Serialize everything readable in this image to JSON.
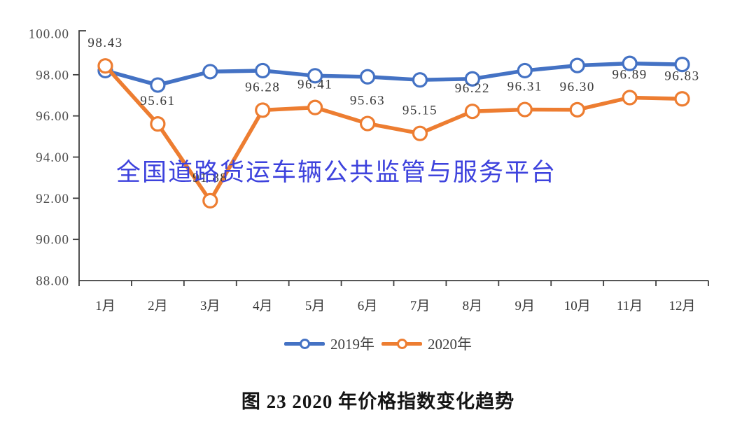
{
  "watermark": {
    "text": "全国道路货运车辆公共监管与服务平台",
    "color": "#3d42dd"
  },
  "caption": {
    "text": "图 23  2020 年价格指数变化趋势"
  },
  "colors": {
    "axis": "#3f3f3f",
    "tick_text": "#4d4d4d",
    "data_label_text": "#383838",
    "series_2019": "#4472c4",
    "series_2020": "#ed7d31"
  },
  "chart_data": {
    "type": "line",
    "title": "图 23 2020 年价格指数变化趋势",
    "categories": [
      "1月",
      "2月",
      "3月",
      "4月",
      "5月",
      "6月",
      "7月",
      "8月",
      "9月",
      "10月",
      "11月",
      "12月"
    ],
    "series": [
      {
        "name": "2019年",
        "color": "#4472c4",
        "values": [
          98.2,
          97.5,
          98.15,
          98.2,
          97.95,
          97.9,
          97.75,
          97.8,
          98.2,
          98.45,
          98.55,
          98.5
        ]
      },
      {
        "name": "2020年",
        "color": "#ed7d31",
        "values": [
          98.43,
          95.61,
          91.88,
          96.28,
          96.41,
          95.63,
          95.15,
          96.22,
          96.31,
          96.3,
          96.89,
          96.83
        ],
        "labels": [
          "98.43",
          "95.61",
          "91.88",
          "96.28",
          "96.41",
          "95.63",
          "95.15",
          "96.22",
          "96.31",
          "96.30",
          "96.89",
          "96.83"
        ]
      }
    ],
    "ylim": [
      88,
      100
    ],
    "ytick_step": 2,
    "ytick_labels": [
      "100.00",
      "98.00",
      "96.00",
      "94.00",
      "92.00",
      "90.00",
      "88.00"
    ],
    "xlabel": "",
    "ylabel": "",
    "grid": false,
    "marker": "open-circle",
    "legend_position": "bottom"
  }
}
